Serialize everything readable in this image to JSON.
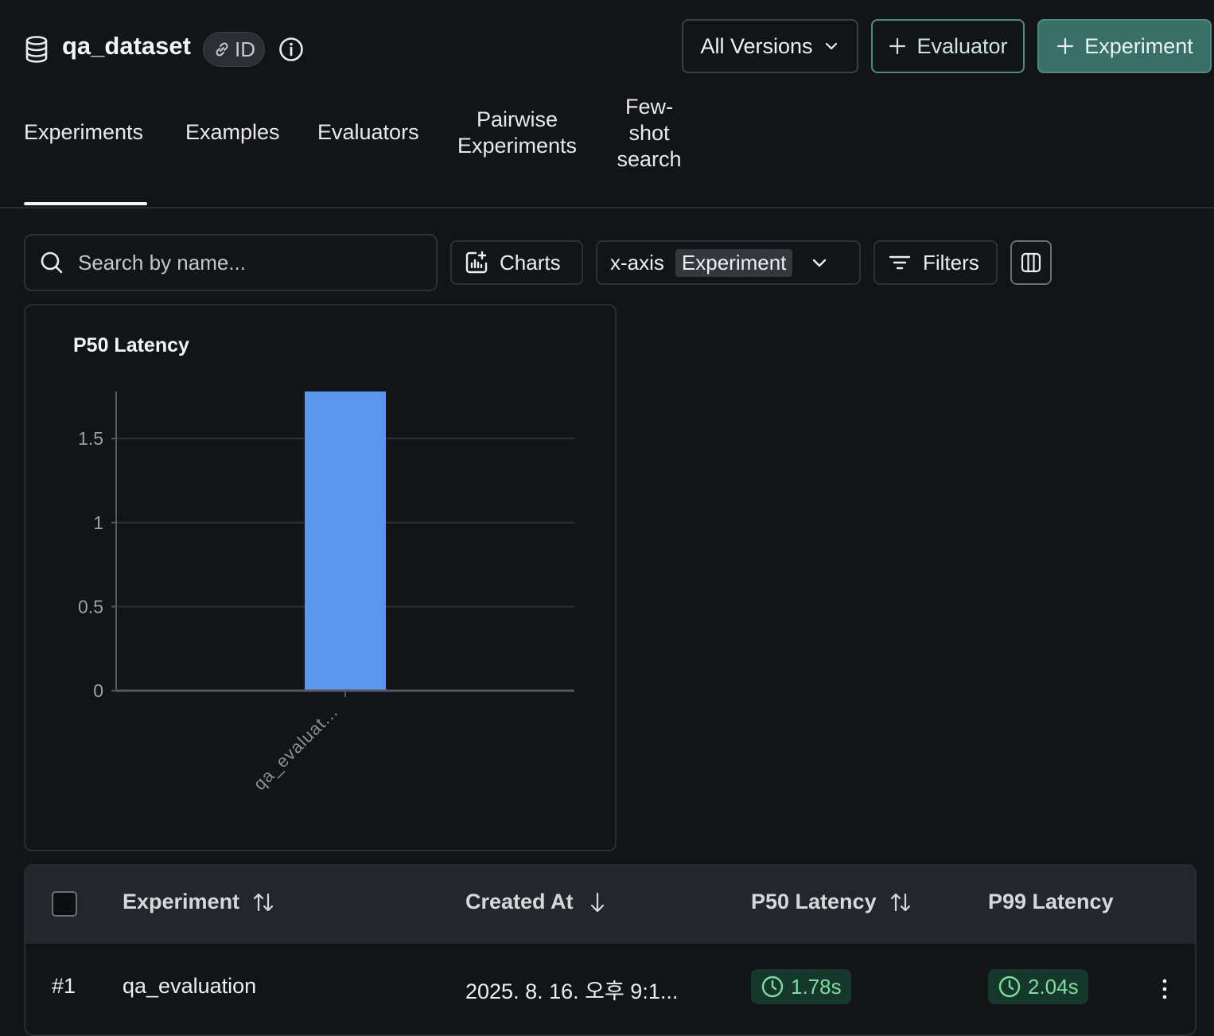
{
  "dataset": {
    "name": "qa_dataset",
    "id_label": "ID"
  },
  "header": {
    "versions_label": "All Versions",
    "evaluator_label": "Evaluator",
    "experiment_label": "Experiment"
  },
  "tabs": [
    {
      "label": "Experiments",
      "active": true
    },
    {
      "label": "Examples"
    },
    {
      "label": "Evaluators"
    },
    {
      "label": "Pairwise Experiments"
    },
    {
      "label": "Few-shot search"
    }
  ],
  "toolbar": {
    "search_placeholder": "Search by name...",
    "charts_label": "Charts",
    "xaxis_label": "x-axis",
    "xaxis_value": "Experiment",
    "filters_label": "Filters"
  },
  "chart_data": {
    "type": "bar",
    "title": "P50 Latency",
    "categories": [
      "qa_evaluat..."
    ],
    "values": [
      1.78
    ],
    "ylim": [
      0,
      1.78
    ],
    "yticks": [
      0,
      0.5,
      1,
      1.5
    ],
    "ytick_labels": [
      "0",
      "0.5",
      "1",
      "1.5"
    ],
    "grid": true,
    "bar_color": "#5a96f0"
  },
  "table": {
    "columns": {
      "experiment": "Experiment",
      "created_at": "Created At",
      "p50": "P50 Latency",
      "p99": "P99 Latency"
    },
    "rows": [
      {
        "index": "#1",
        "name": "qa_evaluation",
        "created_at": "2025. 8. 16. 오후 9:1...",
        "p50": "1.78s",
        "p99": "2.04s"
      }
    ]
  }
}
